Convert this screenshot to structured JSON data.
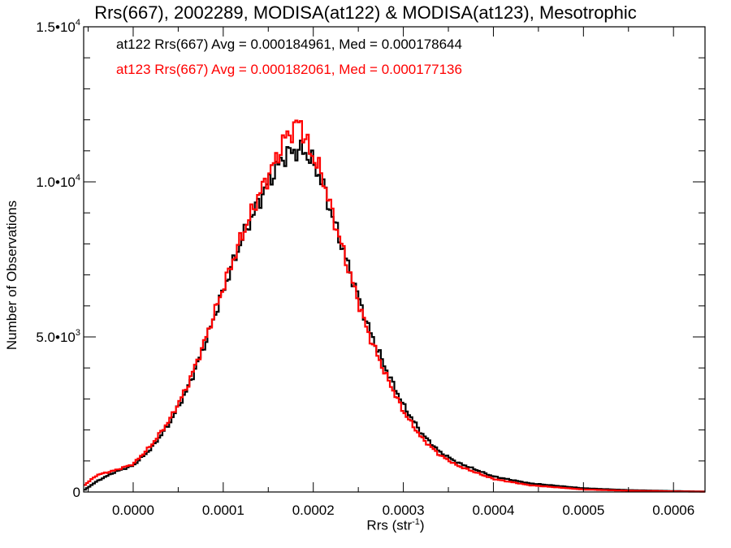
{
  "chart_data": {
    "type": "line",
    "title": "Rrs(667), 2002289, MODISA(at122) & MODISA(at123), Mesotrophic",
    "xlabel": "Rrs (str",
    "xlabel_exponent": "-1",
    "xlabel_close": ")",
    "ylabel": "Number of Observations",
    "xlim": [
      -5.5e-05,
      0.000635
    ],
    "ylim": [
      0,
      15000
    ],
    "x_ticks": [
      0.0,
      0.0001,
      0.0002,
      0.0003,
      0.0004,
      0.0005,
      0.0006
    ],
    "x_tick_labels": [
      "0.0000",
      "0.0001",
      "0.0002",
      "0.0003",
      "0.0004",
      "0.0005",
      "0.0006"
    ],
    "y_ticks": [
      0,
      5000,
      10000,
      15000
    ],
    "y_tick_labels": [
      {
        "base": "0",
        "exp": ""
      },
      {
        "base": "5.0•10",
        "exp": "3"
      },
      {
        "base": "1.0•10",
        "exp": "4"
      },
      {
        "base": "1.5•10",
        "exp": "4"
      }
    ],
    "annotations": [
      "at122 Rrs(667) Avg = 0.000184961, Med = 0.000178644",
      "at123 Rrs(667) Avg = 0.000182061, Med = 0.000177136"
    ],
    "series": [
      {
        "name": "at122",
        "color": "#000000",
        "x": [
          -5.5e-05,
          -4e-05,
          -2e-05,
          0.0,
          2e-05,
          4e-05,
          6e-05,
          8e-05,
          0.0001,
          0.00012,
          0.00014,
          0.00016,
          0.00017,
          0.00018,
          0.00019,
          0.0002,
          0.00021,
          0.00022,
          0.00024,
          0.00026,
          0.00028,
          0.0003,
          0.00032,
          0.00034,
          0.00036,
          0.0004,
          0.00044,
          0.0005,
          0.00055,
          0.0006,
          0.000635
        ],
        "y": [
          50,
          350,
          650,
          850,
          1400,
          2200,
          3300,
          4800,
          6500,
          8100,
          9400,
          10500,
          10900,
          11000,
          11000,
          10600,
          10000,
          9000,
          7200,
          5400,
          4000,
          2800,
          1900,
          1300,
          950,
          500,
          280,
          120,
          60,
          30,
          15
        ]
      },
      {
        "name": "at123",
        "color": "#ff0000",
        "x": [
          -5.5e-05,
          -4e-05,
          -2e-05,
          0.0,
          2e-05,
          4e-05,
          6e-05,
          8e-05,
          0.0001,
          0.00012,
          0.00014,
          0.00016,
          0.00017,
          0.00018,
          0.000185,
          0.00019,
          0.0002,
          0.00021,
          0.00022,
          0.00024,
          0.00026,
          0.00028,
          0.0003,
          0.00032,
          0.00034,
          0.00036,
          0.0004,
          0.00044,
          0.0005,
          0.00055,
          0.0006,
          0.000635
        ],
        "y": [
          200,
          550,
          700,
          900,
          1500,
          2300,
          3400,
          4900,
          6600,
          8200,
          9600,
          10800,
          11500,
          11700,
          12100,
          11400,
          10800,
          10200,
          9100,
          7100,
          5200,
          3800,
          2600,
          1750,
          1200,
          850,
          420,
          220,
          80,
          40,
          20,
          10
        ]
      }
    ],
    "grid": false,
    "legend": "none"
  }
}
